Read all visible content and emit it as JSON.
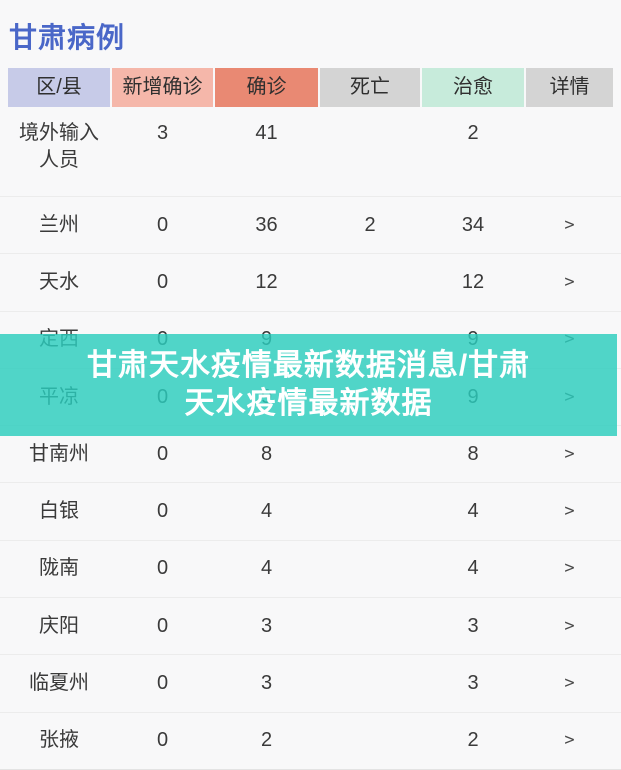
{
  "page_title": "甘肃病例",
  "colors": {
    "title": "#4a67c8",
    "overlay": "rgba(43, 205, 189, 0.82)",
    "divider": "#ececec",
    "header_text": "#2f2f2f"
  },
  "table": {
    "columns": [
      {
        "key": "region",
        "label": "区/县",
        "bg": "#c7cbe8"
      },
      {
        "key": "new",
        "label": "新增确诊",
        "bg": "#f5b7aa"
      },
      {
        "key": "confirmed",
        "label": "确诊",
        "bg": "#e98973"
      },
      {
        "key": "death",
        "label": "死亡",
        "bg": "#d4d4d4"
      },
      {
        "key": "cured",
        "label": "治愈",
        "bg": "#c7ebdb"
      },
      {
        "key": "detail",
        "label": "详情",
        "bg": "#d4d4d4"
      }
    ],
    "detail_arrow": ">",
    "rows": [
      {
        "name": "境外输入人员",
        "new": "3",
        "confirmed": "41",
        "death": "",
        "cured": "2",
        "has_detail": false
      },
      {
        "name": "兰州",
        "new": "0",
        "confirmed": "36",
        "death": "2",
        "cured": "34",
        "has_detail": true
      },
      {
        "name": "天水",
        "new": "0",
        "confirmed": "12",
        "death": "",
        "cured": "12",
        "has_detail": true
      },
      {
        "name": "定西",
        "new": "0",
        "confirmed": "9",
        "death": "",
        "cured": "9",
        "has_detail": true
      },
      {
        "name": "平凉",
        "new": "0",
        "confirmed": "9",
        "death": "",
        "cured": "9",
        "has_detail": true
      },
      {
        "name": "甘南州",
        "new": "0",
        "confirmed": "8",
        "death": "",
        "cured": "8",
        "has_detail": true
      },
      {
        "name": "白银",
        "new": "0",
        "confirmed": "4",
        "death": "",
        "cured": "4",
        "has_detail": true
      },
      {
        "name": "陇南",
        "new": "0",
        "confirmed": "4",
        "death": "",
        "cured": "4",
        "has_detail": true
      },
      {
        "name": "庆阳",
        "new": "0",
        "confirmed": "3",
        "death": "",
        "cured": "3",
        "has_detail": true
      },
      {
        "name": "临夏州",
        "new": "0",
        "confirmed": "3",
        "death": "",
        "cured": "3",
        "has_detail": true
      },
      {
        "name": "张掖",
        "new": "0",
        "confirmed": "2",
        "death": "",
        "cured": "2",
        "has_detail": true
      }
    ]
  },
  "overlay": {
    "line1": "甘肃天水疫情最新数据消息/甘肃",
    "line2": "天水疫情最新数据"
  }
}
